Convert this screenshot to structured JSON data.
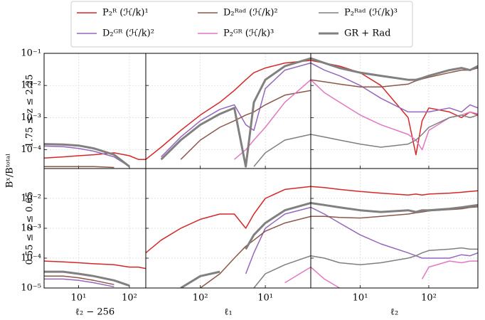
{
  "ylabel": "Bˣ/Bᵗᵒᵗᵃˡ",
  "chart_data": [
    {
      "type": "line",
      "ylabel": "1.75 ≤ z ≤ 2.25",
      "xscale": "log",
      "yscale": "log",
      "grid": true,
      "xlim": [
        2.1,
        210
      ],
      "ylim": [
        2.6e-05,
        0.1
      ],
      "xticks": [
        10,
        100
      ],
      "yticks": [
        {
          "value": 0.0001,
          "label": "10⁻⁴"
        },
        {
          "value": 0.001,
          "label": "10⁻³"
        },
        {
          "value": 0.01,
          "label": "10⁻²"
        },
        {
          "value": 0.1,
          "label": "10⁻¹"
        }
      ],
      "x": [
        2.1,
        5,
        10,
        20,
        50,
        100,
        150,
        210
      ],
      "series": [
        {
          "color": "#d62728",
          "values": [
            5.5e-05,
            6e-05,
            6.5e-05,
            7e-05,
            8e-05,
            6.5e-05,
            5e-05,
            5e-05
          ]
        },
        {
          "color": "#9467bd",
          "values": [
            0.00013,
            0.000125,
            0.00011,
            9e-05,
            6e-05,
            3e-05,
            null,
            null
          ]
        },
        {
          "color": "#8c564b",
          "values": [
            3e-05,
            3e-05,
            3e-05,
            3e-05,
            2.8e-05,
            null,
            null,
            null
          ]
        },
        {
          "color": "#808080",
          "width": 3,
          "values": [
            0.00015,
            0.000145,
            0.000135,
            0.00011,
            7e-05,
            3e-05,
            null,
            3e-05
          ]
        }
      ]
    },
    {
      "type": "line",
      "xscale": "log",
      "yscale": "log",
      "grid": true,
      "xlim": [
        690,
        2
      ],
      "ylim": [
        2.6e-05,
        0.1
      ],
      "xticks": [
        100,
        10
      ],
      "yticks": [
        0.0001,
        0.001,
        0.01,
        0.1
      ],
      "x": [
        690,
        400,
        200,
        100,
        50,
        30,
        20,
        15,
        10,
        5,
        2
      ],
      "series": [
        {
          "color": "#d62728",
          "values": [
            5e-05,
            0.00012,
            0.0004,
            0.0012,
            0.003,
            0.007,
            0.015,
            0.025,
            0.035,
            0.05,
            0.06
          ]
        },
        {
          "color": "#9467bd",
          "values": [
            null,
            6e-05,
            0.00025,
            0.0008,
            0.0018,
            0.0025,
            0.0006,
            0.0004,
            0.008,
            0.03,
            0.05
          ]
        },
        {
          "color": "#8c564b",
          "values": [
            null,
            null,
            5e-05,
            0.0002,
            0.0005,
            0.0008,
            0.0012,
            0.0015,
            0.0025,
            0.005,
            0.007
          ]
        },
        {
          "color": "#e377c2",
          "values": [
            null,
            null,
            null,
            null,
            null,
            5e-05,
            0.0001,
            0.0002,
            0.0005,
            0.003,
            0.015
          ]
        },
        {
          "color": "#7f7f7f",
          "values": [
            null,
            null,
            null,
            null,
            null,
            null,
            null,
            3e-05,
            8e-05,
            0.0002,
            0.0003
          ]
        },
        {
          "color": "#808080",
          "width": 3,
          "values": [
            null,
            5e-05,
            0.0002,
            0.0006,
            0.0013,
            0.002,
            3e-05,
            0.003,
            0.015,
            0.04,
            0.07
          ]
        }
      ]
    },
    {
      "type": "line",
      "xscale": "log",
      "yscale": "log",
      "grid": true,
      "xlim": [
        1.9,
        520
      ],
      "ylim": [
        2.6e-05,
        0.1
      ],
      "xticks": [
        10,
        100
      ],
      "yticks": [
        0.0001,
        0.001,
        0.01,
        0.1
      ],
      "x": [
        1.9,
        3,
        5,
        10,
        20,
        50,
        65,
        80,
        100,
        200,
        300,
        400,
        520
      ],
      "series": [
        {
          "name": "P₂ᴿ (ℋ/k)¹",
          "color": "#d62728",
          "values": [
            0.06,
            0.05,
            0.04,
            0.025,
            0.01,
            0.001,
            7e-05,
            0.0008,
            0.002,
            0.0015,
            0.001,
            0.0015,
            0.0012
          ]
        },
        {
          "name": "D₂ᴳᴿ (ℋ/k)²",
          "color": "#9467bd",
          "values": [
            0.05,
            0.03,
            0.02,
            0.01,
            0.004,
            0.0015,
            0.0015,
            0.0015,
            0.0015,
            0.002,
            0.0015,
            0.0025,
            0.002
          ]
        },
        {
          "name": "D₂ᴿᵃᵈ (ℋ/k)²",
          "color": "#8c564b",
          "values": [
            0.015,
            0.013,
            0.011,
            0.009,
            0.009,
            0.011,
            0.014,
            0.016,
            0.018,
            0.025,
            0.03,
            0.03,
            0.035
          ]
        },
        {
          "name": "P₂ᴳᴿ (ℋ/k)³",
          "color": "#e377c2",
          "values": [
            0.015,
            0.006,
            0.003,
            0.0012,
            0.0006,
            0.0003,
            0.0002,
            0.0001,
            0.0004,
            0.001,
            0.0012,
            0.0015,
            0.0013
          ]
        },
        {
          "name": "P₂ᴿᵃᵈ (ℋ/k)³",
          "color": "#7f7f7f",
          "values": [
            0.0003,
            0.00025,
            0.0002,
            0.00015,
            0.00012,
            0.00015,
            0.0002,
            0.0003,
            0.0005,
            0.001,
            0.0012,
            0.001,
            0.0012
          ]
        },
        {
          "name": "GR + Rad",
          "color": "#808080",
          "width": 3,
          "values": [
            0.07,
            0.05,
            0.035,
            0.025,
            0.02,
            0.015,
            0.015,
            0.017,
            0.02,
            0.03,
            0.035,
            0.03,
            0.04
          ]
        }
      ]
    },
    {
      "type": "line",
      "ylabel": "0.55 ≤ z ≤ 0.65",
      "xlabel": "ℓ₂ − 256",
      "xscale": "log",
      "yscale": "log",
      "grid": true,
      "xlim": [
        2.1,
        210
      ],
      "ylim": [
        1e-05,
        0.1
      ],
      "xticks": [
        {
          "value": 10,
          "label": "10¹"
        },
        {
          "value": 100,
          "label": "10²"
        }
      ],
      "yticks": [
        {
          "value": 1e-05,
          "label": "10⁻⁵"
        },
        {
          "value": 0.0001,
          "label": "10⁻⁴"
        },
        {
          "value": 0.001,
          "label": "10⁻³"
        },
        {
          "value": 0.01,
          "label": "10⁻²"
        }
      ],
      "x": [
        2.1,
        5,
        10,
        20,
        50,
        100,
        150,
        210
      ],
      "series": [
        {
          "color": "#d62728",
          "values": [
            8e-05,
            7.5e-05,
            7e-05,
            6.5e-05,
            6e-05,
            5e-05,
            5e-05,
            4.5e-05
          ]
        },
        {
          "color": "#9467bd",
          "values": [
            2e-05,
            2e-05,
            1.8e-05,
            1.5e-05,
            1.1e-05,
            null,
            null,
            null
          ]
        },
        {
          "color": "#8c564b",
          "values": [
            2.5e-05,
            2.5e-05,
            2.2e-05,
            1.8e-05,
            1.3e-05,
            null,
            null,
            null
          ]
        },
        {
          "color": "#808080",
          "width": 3,
          "values": [
            3.5e-05,
            3.5e-05,
            3e-05,
            2.5e-05,
            1.8e-05,
            1.2e-05,
            null,
            null
          ]
        }
      ]
    },
    {
      "type": "line",
      "xlabel": "ℓ₁",
      "xscale": "log",
      "yscale": "log",
      "grid": true,
      "xlim": [
        690,
        2
      ],
      "ylim": [
        1e-05,
        0.1
      ],
      "xticks": [
        {
          "value": 100,
          "label": "10²"
        },
        {
          "value": 10,
          "label": "10¹"
        }
      ],
      "yticks": [
        1e-05,
        0.0001,
        0.001,
        0.01
      ],
      "x": [
        690,
        400,
        200,
        100,
        50,
        30,
        20,
        15,
        10,
        5,
        2
      ],
      "series": [
        {
          "color": "#d62728",
          "values": [
            0.00015,
            0.0004,
            0.001,
            0.002,
            0.003,
            0.003,
            0.001,
            0.003,
            0.01,
            0.02,
            0.025
          ]
        },
        {
          "color": "#9467bd",
          "values": [
            null,
            null,
            null,
            null,
            null,
            null,
            3e-05,
            0.00015,
            0.001,
            0.003,
            0.005
          ]
        },
        {
          "color": "#8c564b",
          "values": [
            null,
            null,
            null,
            1e-05,
            3e-05,
            0.0001,
            0.00025,
            0.0004,
            0.0008,
            0.0015,
            0.0025
          ]
        },
        {
          "color": "#e377c2",
          "values": [
            null,
            null,
            null,
            null,
            null,
            null,
            null,
            null,
            null,
            1.5e-05,
            5e-05
          ]
        },
        {
          "color": "#7f7f7f",
          "values": [
            null,
            null,
            null,
            null,
            null,
            null,
            null,
            1e-05,
            3e-05,
            6e-05,
            0.00012
          ]
        },
        {
          "color": "#808080",
          "width": 3,
          "values": [
            null,
            null,
            1e-05,
            2.5e-05,
            3.5e-05,
            null,
            0.0002,
            0.0006,
            0.0015,
            0.004,
            0.007
          ]
        }
      ]
    },
    {
      "type": "line",
      "xlabel": "ℓ₂",
      "xscale": "log",
      "yscale": "log",
      "grid": true,
      "xlim": [
        1.9,
        520
      ],
      "ylim": [
        1e-05,
        0.1
      ],
      "xticks": [
        {
          "value": 10,
          "label": "10¹"
        },
        {
          "value": 100,
          "label": "10²"
        }
      ],
      "yticks": [
        1e-05,
        0.0001,
        0.001,
        0.01
      ],
      "x": [
        1.9,
        3,
        5,
        10,
        20,
        50,
        65,
        80,
        100,
        200,
        300,
        400,
        520
      ],
      "series": [
        {
          "color": "#d62728",
          "values": [
            0.025,
            0.023,
            0.02,
            0.017,
            0.015,
            0.013,
            0.014,
            0.013,
            0.014,
            0.015,
            0.016,
            0.017,
            0.018
          ]
        },
        {
          "color": "#9467bd",
          "values": [
            0.005,
            0.003,
            0.0015,
            0.0006,
            0.0003,
            0.00015,
            0.00012,
            0.0001,
            0.0001,
            0.0001,
            0.00013,
            0.00012,
            0.00015
          ]
        },
        {
          "color": "#8c564b",
          "values": [
            0.0025,
            0.0025,
            0.0023,
            0.0022,
            0.0025,
            0.003,
            0.0033,
            0.0035,
            0.0038,
            0.0042,
            0.0045,
            0.005,
            0.0052
          ]
        },
        {
          "color": "#e377c2",
          "values": [
            5e-05,
            2e-05,
            1e-05,
            null,
            null,
            null,
            null,
            2e-05,
            5e-05,
            8e-05,
            7e-05,
            8e-05,
            8e-05
          ]
        },
        {
          "color": "#7f7f7f",
          "values": [
            0.00012,
            0.0001,
            7e-05,
            6e-05,
            7e-05,
            0.0001,
            0.00012,
            0.00015,
            0.00018,
            0.0002,
            0.00022,
            0.0002,
            0.0002
          ]
        },
        {
          "color": "#808080",
          "width": 3,
          "values": [
            0.007,
            0.006,
            0.005,
            0.004,
            0.0035,
            0.004,
            0.0035,
            0.004,
            0.004,
            0.0045,
            0.005,
            0.0055,
            0.006
          ]
        }
      ]
    }
  ]
}
